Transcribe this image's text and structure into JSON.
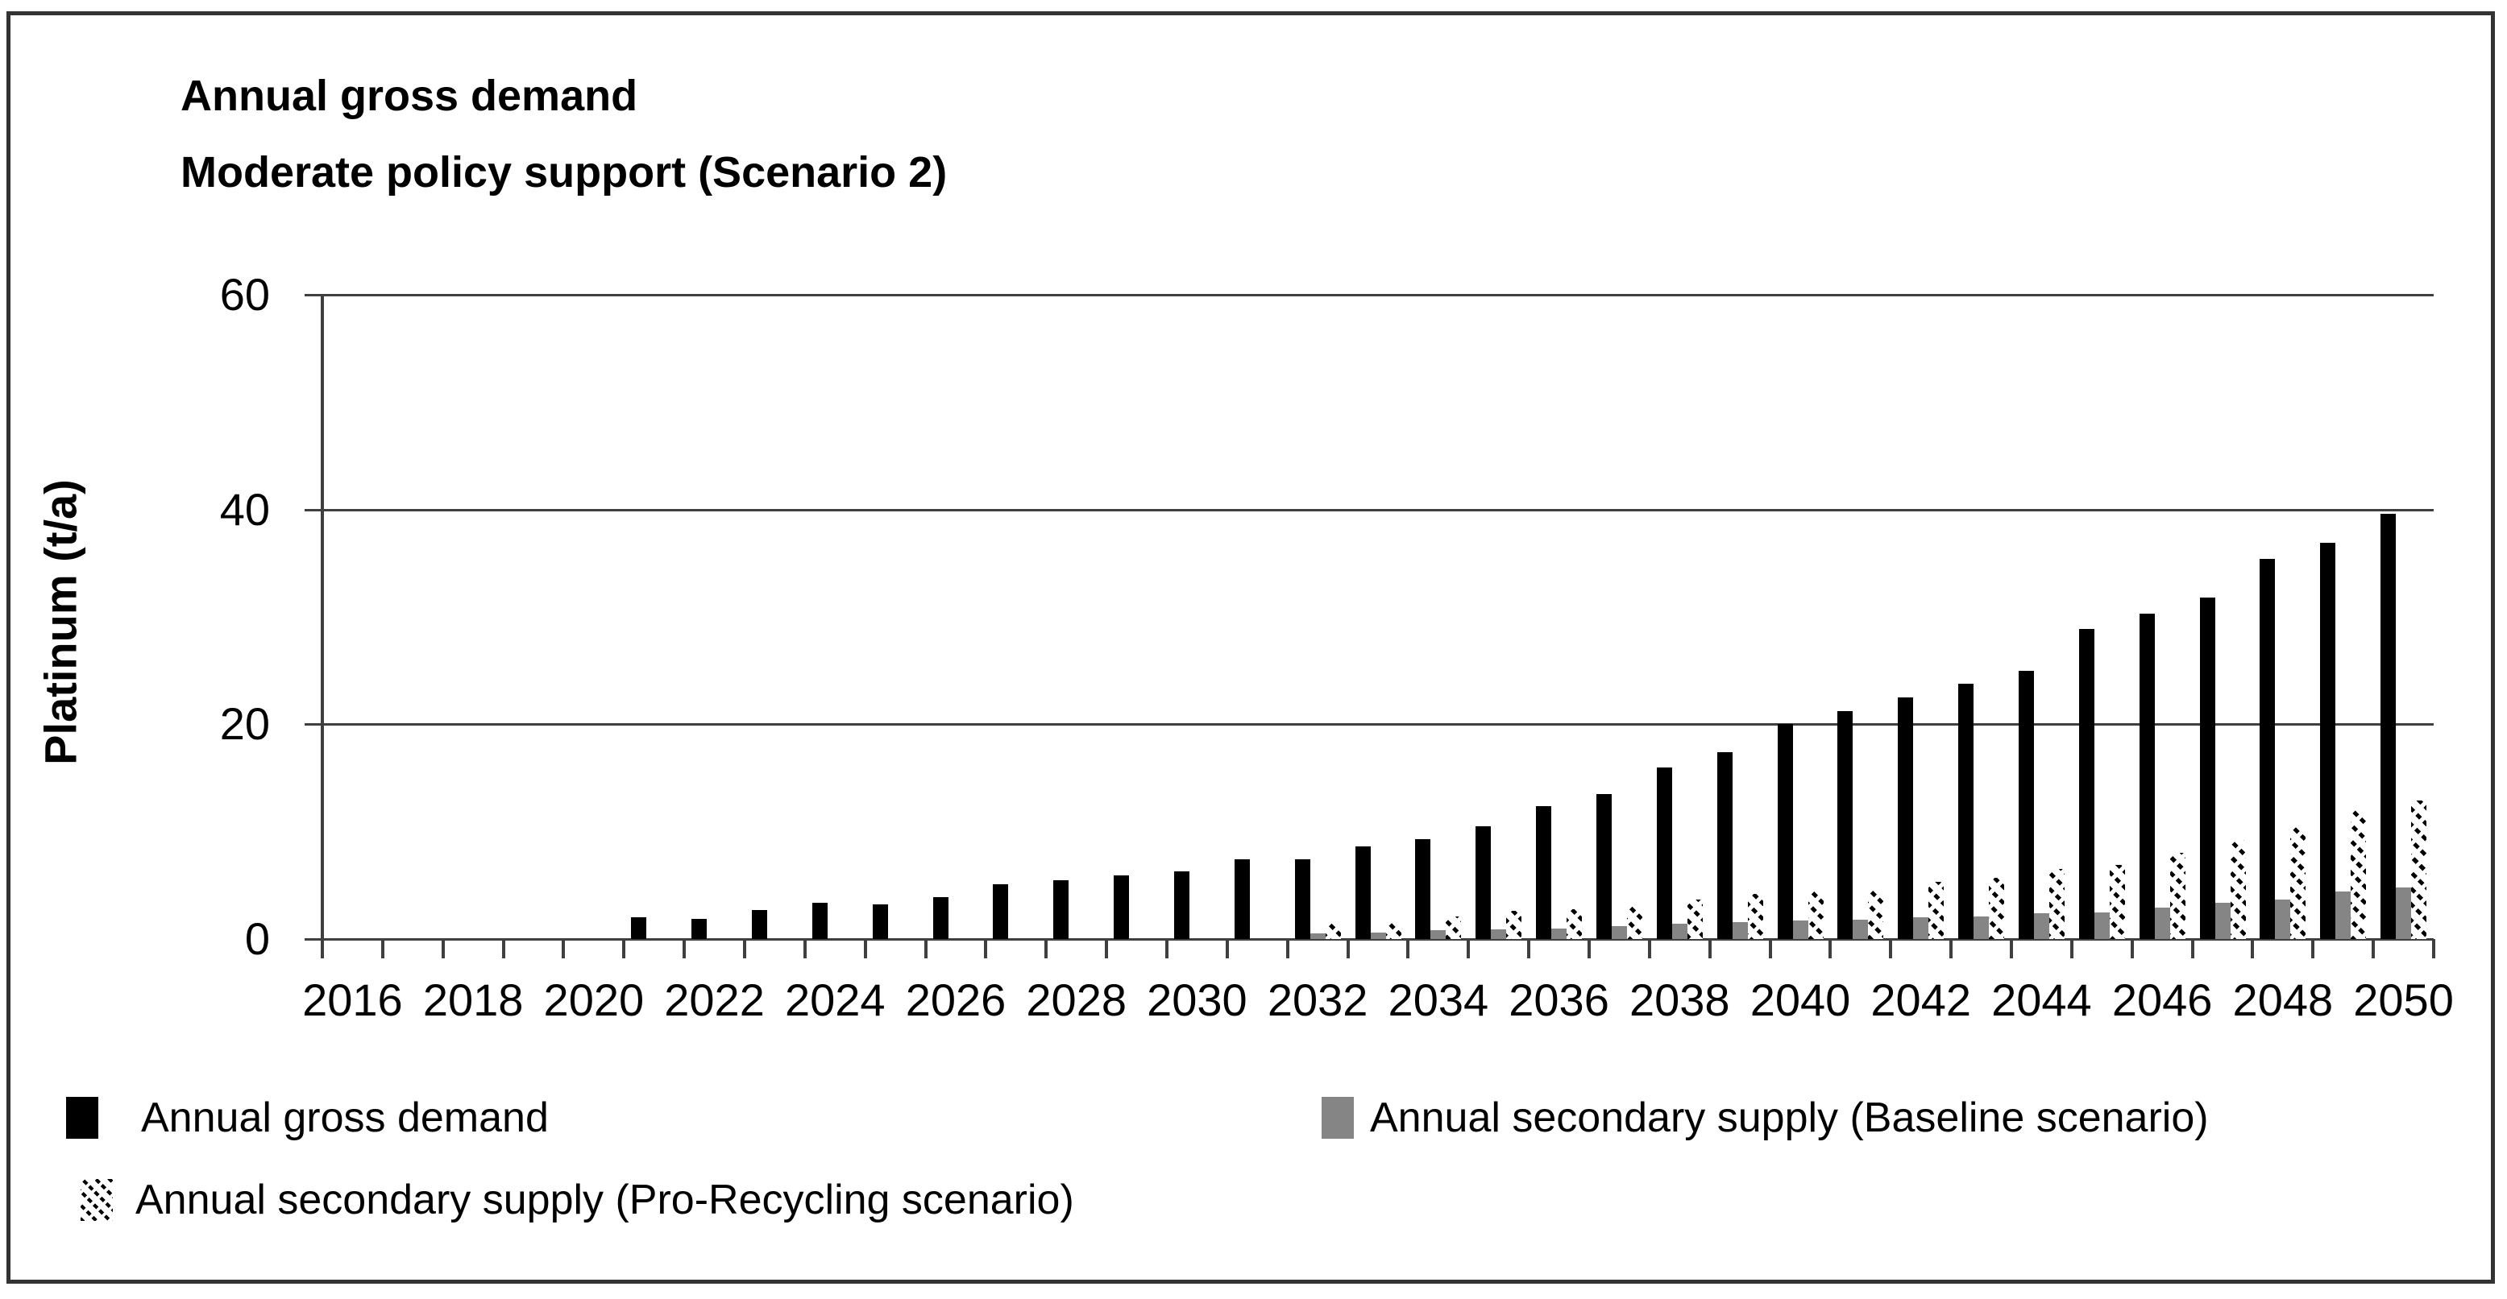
{
  "title": {
    "line1": "Annual gross demand",
    "line2": "Moderate policy support (Scenario 2)"
  },
  "y_axis": {
    "title": "Platinum (t/a)",
    "tick_values": [
      0,
      20,
      40,
      60
    ],
    "max": 60
  },
  "x_axis": {
    "labeled_years": [
      "2016",
      "2018",
      "2020",
      "2022",
      "2024",
      "2026",
      "2028",
      "2030",
      "2032",
      "2034",
      "2036",
      "2038",
      "2040",
      "2042",
      "2044",
      "2046",
      "2048",
      "2050"
    ]
  },
  "legend": {
    "item1": "Annual gross demand",
    "item2": "Annual secondary supply (Baseline scenario)",
    "item3": "Annual secondary supply (Pro-Recycling scenario)"
  },
  "colors": {
    "bar_black": "#000000",
    "bar_gray": "#858585",
    "hatch_foreground": "#000000",
    "hatch_background": "#ffffff",
    "axis": "#3f3f3f",
    "frame_border": "#333333",
    "text": "#000000"
  },
  "chart_data": {
    "type": "bar",
    "title": "Annual gross demand — Moderate policy support (Scenario 2)",
    "ylabel": "Platinum (t/a)",
    "ylim": [
      0,
      60
    ],
    "grid": true,
    "legend_position": "bottom",
    "categories": [
      2016,
      2017,
      2018,
      2019,
      2020,
      2021,
      2022,
      2023,
      2024,
      2025,
      2026,
      2027,
      2028,
      2029,
      2030,
      2031,
      2032,
      2033,
      2034,
      2035,
      2036,
      2037,
      2038,
      2039,
      2040,
      2041,
      2042,
      2043,
      2044,
      2045,
      2046,
      2047,
      2048,
      2049,
      2050
    ],
    "series": [
      {
        "name": "Annual gross demand",
        "style": "black",
        "values": [
          0,
          0,
          0,
          0,
          0,
          2.0,
          1.9,
          2.7,
          3.4,
          3.2,
          3.9,
          5.1,
          5.5,
          5.9,
          6.3,
          7.4,
          7.4,
          8.6,
          9.3,
          10.5,
          12.4,
          13.5,
          16.0,
          17.4,
          20.0,
          21.2,
          22.5,
          23.8,
          25.0,
          28.9,
          30.3,
          31.8,
          35.4,
          36.9,
          39.6
        ]
      },
      {
        "name": "Annual secondary supply (Baseline scenario)",
        "style": "gray",
        "values": [
          0,
          0,
          0,
          0,
          0,
          0,
          0,
          0,
          0,
          0,
          0,
          0,
          0,
          0,
          0,
          0,
          0.5,
          0.6,
          0.8,
          0.9,
          1.0,
          1.2,
          1.4,
          1.6,
          1.7,
          1.8,
          2.0,
          2.1,
          2.4,
          2.5,
          2.9,
          3.4,
          3.7,
          4.4,
          4.8
        ]
      },
      {
        "name": "Annual secondary supply (Pro-Recycling scenario)",
        "style": "hatch",
        "values": [
          0,
          0,
          0,
          0,
          0,
          0,
          0,
          0,
          0,
          0,
          0,
          0,
          0,
          0,
          0,
          0,
          1.4,
          1.5,
          2.1,
          2.6,
          2.8,
          3.1,
          3.7,
          4.2,
          4.4,
          4.6,
          5.3,
          5.7,
          6.5,
          6.9,
          8.0,
          9.2,
          10.4,
          12.1,
          12.9
        ]
      }
    ]
  }
}
